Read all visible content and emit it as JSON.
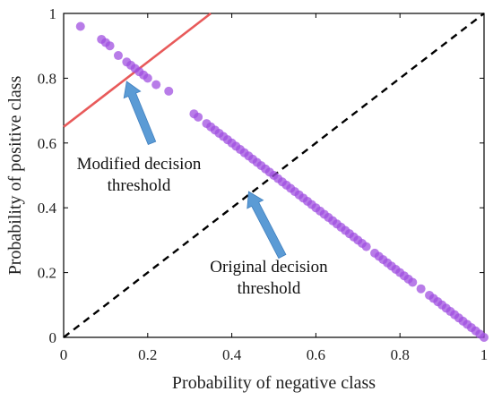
{
  "chart_data": {
    "type": "scatter",
    "title": "",
    "xlabel": "Probability of negative class",
    "ylabel": "Probability of positive class",
    "xlim": [
      0,
      1
    ],
    "ylim": [
      0,
      1
    ],
    "x_ticks": [
      "0",
      "0.2",
      "0.4",
      "0.6",
      "0.8",
      "1"
    ],
    "y_ticks": [
      "0",
      "0.2",
      "0.4",
      "0.6",
      "0.8",
      "1"
    ],
    "grid": false,
    "colors": {
      "points": "#a050e0",
      "modified_line": "#e85a5a",
      "original_line": "#000000",
      "arrow": "#5b9bd5"
    },
    "points": [
      [
        0.04,
        0.96
      ],
      [
        0.09,
        0.92
      ],
      [
        0.1,
        0.91
      ],
      [
        0.11,
        0.9
      ],
      [
        0.13,
        0.87
      ],
      [
        0.15,
        0.85
      ],
      [
        0.16,
        0.84
      ],
      [
        0.17,
        0.83
      ],
      [
        0.18,
        0.82
      ],
      [
        0.19,
        0.81
      ],
      [
        0.2,
        0.8
      ],
      [
        0.22,
        0.78
      ],
      [
        0.25,
        0.76
      ],
      [
        0.31,
        0.69
      ],
      [
        0.32,
        0.68
      ],
      [
        0.34,
        0.66
      ],
      [
        0.35,
        0.65
      ],
      [
        0.36,
        0.64
      ],
      [
        0.37,
        0.63
      ],
      [
        0.38,
        0.62
      ],
      [
        0.39,
        0.61
      ],
      [
        0.4,
        0.6
      ],
      [
        0.41,
        0.59
      ],
      [
        0.42,
        0.58
      ],
      [
        0.43,
        0.57
      ],
      [
        0.44,
        0.56
      ],
      [
        0.45,
        0.55
      ],
      [
        0.46,
        0.54
      ],
      [
        0.47,
        0.53
      ],
      [
        0.48,
        0.52
      ],
      [
        0.49,
        0.51
      ],
      [
        0.5,
        0.5
      ],
      [
        0.51,
        0.49
      ],
      [
        0.52,
        0.48
      ],
      [
        0.53,
        0.47
      ],
      [
        0.54,
        0.46
      ],
      [
        0.55,
        0.45
      ],
      [
        0.56,
        0.44
      ],
      [
        0.57,
        0.43
      ],
      [
        0.58,
        0.42
      ],
      [
        0.59,
        0.41
      ],
      [
        0.6,
        0.4
      ],
      [
        0.61,
        0.39
      ],
      [
        0.62,
        0.38
      ],
      [
        0.63,
        0.37
      ],
      [
        0.64,
        0.36
      ],
      [
        0.65,
        0.35
      ],
      [
        0.66,
        0.34
      ],
      [
        0.67,
        0.33
      ],
      [
        0.68,
        0.32
      ],
      [
        0.69,
        0.31
      ],
      [
        0.7,
        0.3
      ],
      [
        0.71,
        0.29
      ],
      [
        0.72,
        0.28
      ],
      [
        0.74,
        0.26
      ],
      [
        0.75,
        0.25
      ],
      [
        0.76,
        0.24
      ],
      [
        0.77,
        0.23
      ],
      [
        0.78,
        0.22
      ],
      [
        0.79,
        0.21
      ],
      [
        0.8,
        0.2
      ],
      [
        0.81,
        0.19
      ],
      [
        0.82,
        0.18
      ],
      [
        0.83,
        0.17
      ],
      [
        0.85,
        0.15
      ],
      [
        0.87,
        0.13
      ],
      [
        0.88,
        0.12
      ],
      [
        0.89,
        0.11
      ],
      [
        0.9,
        0.1
      ],
      [
        0.91,
        0.09
      ],
      [
        0.92,
        0.08
      ],
      [
        0.93,
        0.07
      ],
      [
        0.94,
        0.06
      ],
      [
        0.95,
        0.05
      ],
      [
        0.96,
        0.04
      ],
      [
        0.97,
        0.03
      ],
      [
        0.98,
        0.02
      ],
      [
        0.99,
        0.01
      ],
      [
        1.0,
        0.0
      ]
    ],
    "lines": [
      {
        "x": [
          0,
          0.35
        ],
        "y": [
          0.65,
          1.0
        ],
        "style": "solid",
        "color_key": "modified_line"
      },
      {
        "x": [
          0,
          1
        ],
        "y": [
          0,
          1
        ],
        "style": "dashed",
        "color_key": "original_line"
      }
    ],
    "annotations": [
      {
        "text_lines": [
          "Modified decision",
          "threshold"
        ],
        "arrow_from": [
          0.21,
          0.6
        ],
        "arrow_to": [
          0.15,
          0.79
        ]
      },
      {
        "text_lines": [
          "Original decision",
          "threshold"
        ],
        "arrow_from": [
          0.52,
          0.25
        ],
        "arrow_to": [
          0.44,
          0.45
        ]
      }
    ]
  }
}
